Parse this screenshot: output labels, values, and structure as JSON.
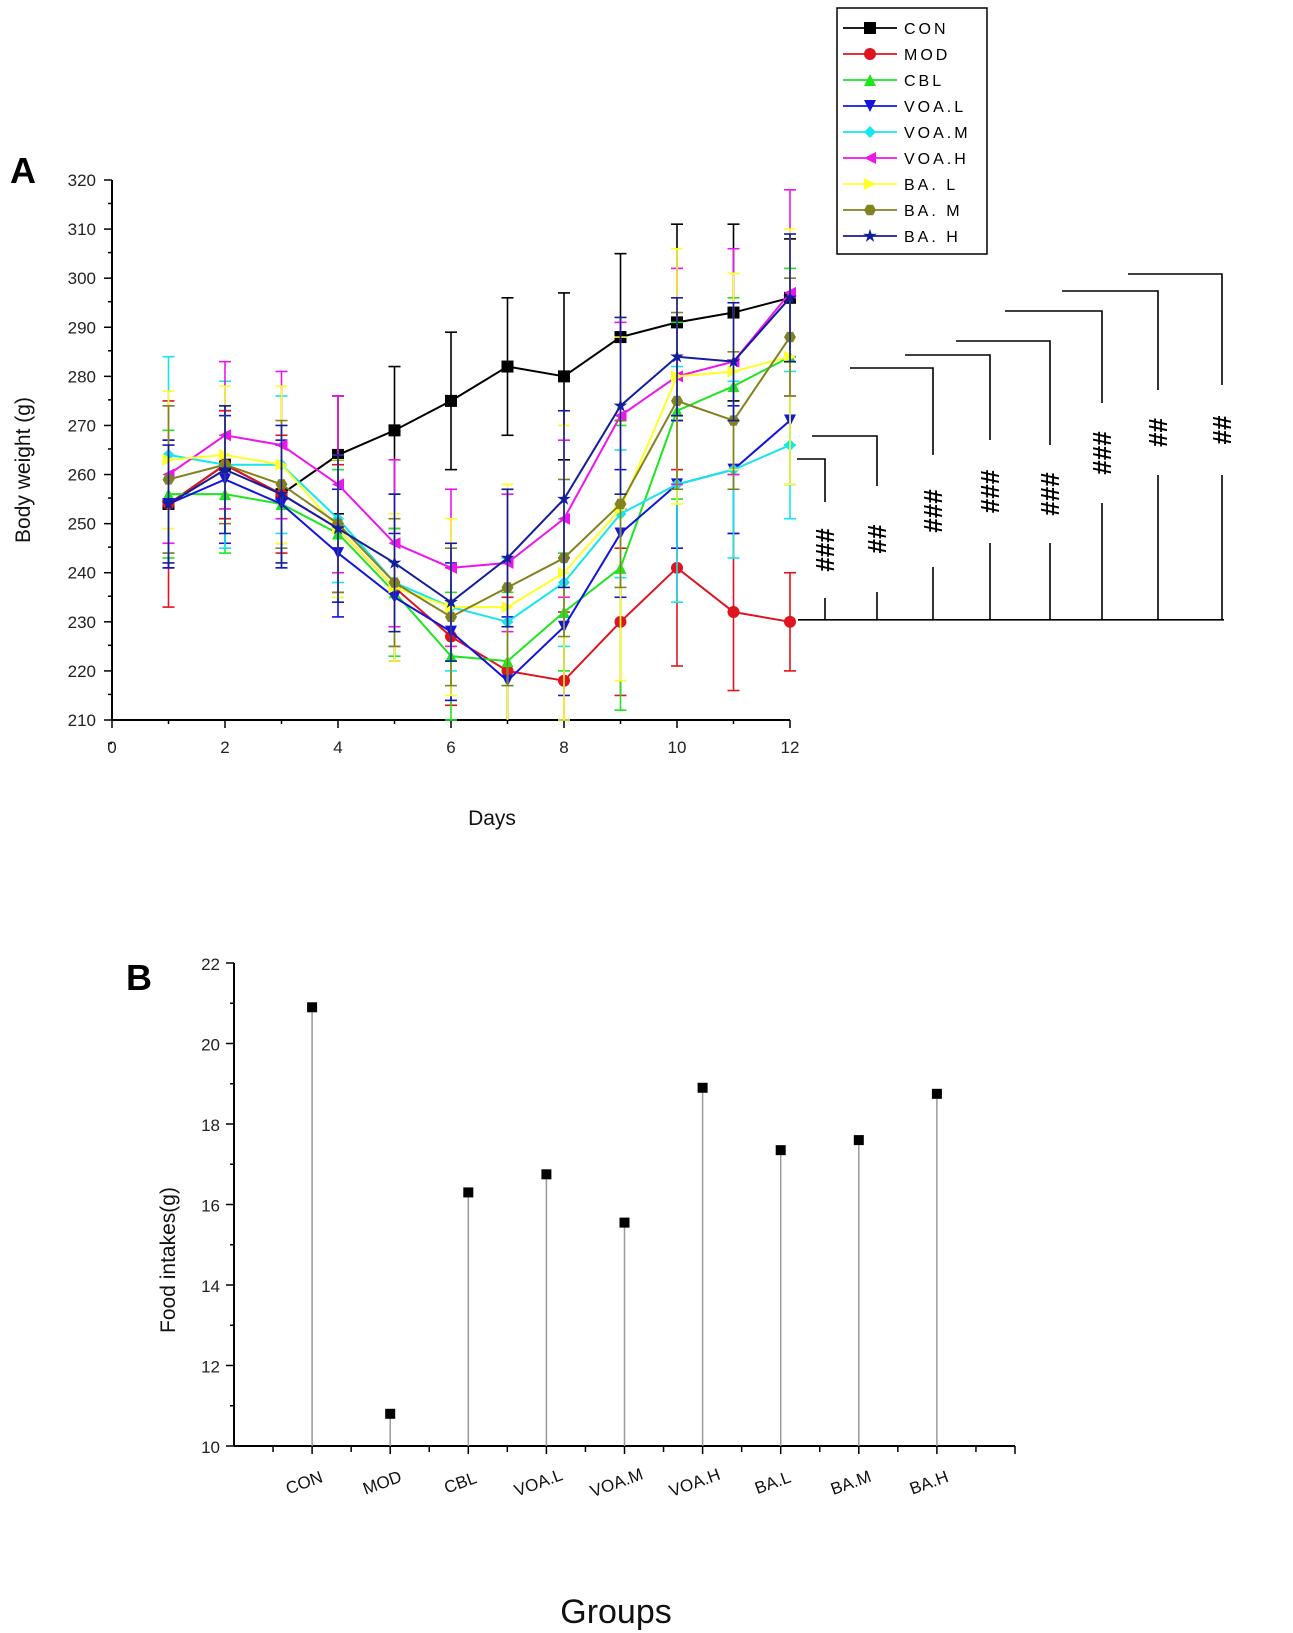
{
  "chart_data": [
    {
      "panel": "A",
      "type": "line",
      "xlabel": "Days",
      "ylabel": "Body weight (g)",
      "xlim": [
        0,
        12
      ],
      "ylim": [
        210,
        320
      ],
      "xticks": [
        0,
        2,
        4,
        6,
        8,
        10,
        12
      ],
      "yticks": [
        210,
        220,
        230,
        240,
        250,
        260,
        270,
        280,
        290,
        300,
        310,
        320
      ],
      "x": [
        1,
        2,
        3,
        4,
        5,
        6,
        7,
        8,
        9,
        10,
        11,
        12
      ],
      "series": [
        {
          "name": "CON",
          "color": "#000000",
          "marker": "square",
          "values": [
            254,
            262,
            256,
            264,
            269,
            275,
            282,
            280,
            288,
            291,
            293,
            296
          ],
          "err": [
            13,
            11,
            10,
            12,
            13,
            14,
            14,
            17,
            17,
            20,
            18,
            12
          ]
        },
        {
          "name": "MOD",
          "color": "#e0141e",
          "marker": "circle",
          "values": [
            254,
            262,
            256,
            249,
            237,
            227,
            220,
            218,
            230,
            241,
            232,
            230
          ],
          "err": [
            21,
            11,
            12,
            13,
            12,
            14,
            15,
            14,
            15,
            20,
            16,
            10
          ]
        },
        {
          "name": "CBL",
          "color": "#1ee61e",
          "marker": "triangle-up",
          "values": [
            256,
            256,
            254,
            248,
            236,
            223,
            222,
            232,
            241,
            273,
            278,
            284
          ],
          "err": [
            13,
            12,
            13,
            13,
            13,
            13,
            14,
            12,
            29,
            18,
            18,
            18
          ]
        },
        {
          "name": "VOA.L",
          "color": "#1414dc",
          "marker": "triangle-down",
          "values": [
            254,
            259,
            254,
            244,
            235,
            228,
            218,
            229,
            248,
            258,
            261,
            271
          ],
          "err": [
            13,
            13,
            13,
            13,
            13,
            14,
            13,
            14,
            13,
            13,
            13,
            13
          ]
        },
        {
          "name": "VOA.M",
          "color": "#14e6ee",
          "marker": "diamond",
          "values": [
            264,
            262,
            262,
            251,
            238,
            233,
            230,
            238,
            252,
            258,
            261,
            266
          ],
          "err": [
            20,
            17,
            14,
            13,
            13,
            13,
            13,
            13,
            13,
            24,
            18,
            15
          ]
        },
        {
          "name": "VOA.H",
          "color": "#ee14ee",
          "marker": "triangle-left",
          "values": [
            260,
            268,
            266,
            258,
            246,
            241,
            242,
            251,
            272,
            280,
            283,
            297
          ],
          "err": [
            14,
            15,
            15,
            18,
            17,
            16,
            14,
            16,
            19,
            22,
            23,
            21
          ]
        },
        {
          "name": "BA. L",
          "color": "#ffff28",
          "marker": "triangle-right",
          "values": [
            263,
            264,
            262,
            249,
            237,
            233,
            233,
            240,
            253,
            280,
            281,
            284
          ],
          "err": [
            14,
            14,
            16,
            14,
            15,
            18,
            25,
            30,
            35,
            26,
            20,
            26
          ]
        },
        {
          "name": "BA. M",
          "color": "#82821e",
          "marker": "hexagon",
          "values": [
            259,
            262,
            258,
            250,
            238,
            231,
            237,
            243,
            254,
            275,
            271,
            288
          ],
          "err": [
            15,
            12,
            13,
            14,
            13,
            14,
            20,
            16,
            17,
            18,
            14,
            12
          ]
        },
        {
          "name": "BA. H",
          "color": "#141e9c",
          "marker": "star",
          "values": [
            254,
            261,
            256,
            249,
            242,
            234,
            243,
            255,
            274,
            284,
            283,
            296
          ],
          "err": [
            12,
            13,
            14,
            15,
            14,
            12,
            14,
            18,
            18,
            12,
            12,
            13
          ]
        }
      ],
      "significance": [
        "###",
        "##",
        "###",
        "###",
        "###",
        "###",
        "##",
        "##"
      ],
      "legend_position": "top-right"
    },
    {
      "panel": "B",
      "type": "stem",
      "xlabel": "Groups",
      "ylabel": "Food intakes(g)",
      "ylim": [
        10,
        22
      ],
      "yticks": [
        10,
        12,
        14,
        16,
        18,
        20,
        22
      ],
      "categories": [
        "CON",
        "MOD",
        "CBL",
        "VOA.L",
        "VOA.M",
        "VOA.H",
        "BA.L",
        "BA.M",
        "BA.H"
      ],
      "values": [
        20.9,
        10.8,
        16.3,
        16.75,
        15.55,
        18.9,
        17.35,
        17.6,
        18.75
      ]
    }
  ]
}
